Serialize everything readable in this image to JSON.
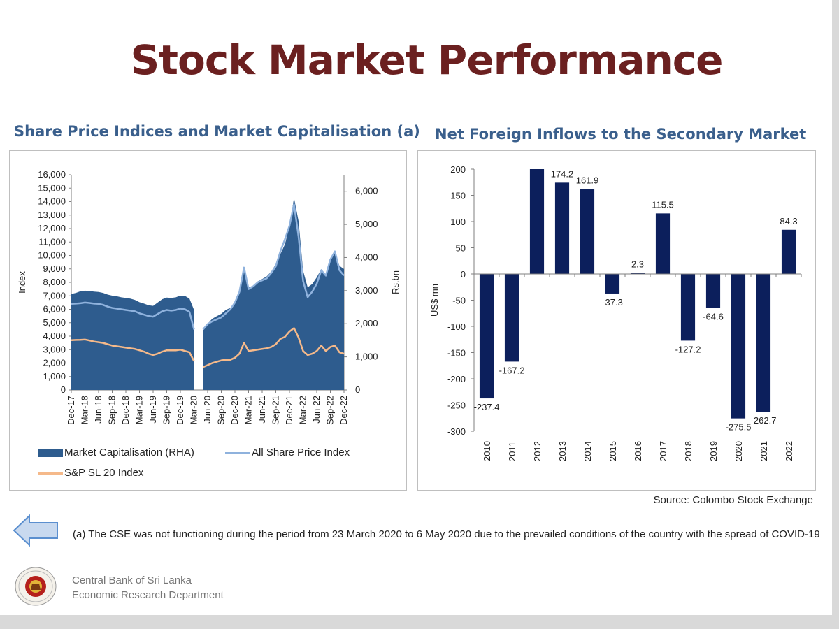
{
  "page_title": "Stock Market Performance",
  "source": "Source: Colombo Stock Exchange",
  "footnote": "(a) The CSE was not functioning during the period from 23 March 2020 to 6 May 2020 due to the prevailed conditions of the country with the spread of COVID-19",
  "organization": {
    "line1": "Central Bank of Sri Lanka",
    "line2": "Economic Research Department"
  },
  "colors": {
    "title": "#6b2020",
    "chart_title": "#3a5f8c",
    "market_cap": "#2e5c8e",
    "aspi": "#8fb2dd",
    "sp": "#f5b98a",
    "bars": "#0c1f5c"
  },
  "chart_data": [
    {
      "type": "area",
      "title": "Share Price Indices and Market Capitalisation (a)",
      "ylabel": "Index",
      "y2label": "Rs.bn",
      "ylim": [
        0,
        16000
      ],
      "y2lim": [
        0,
        6500
      ],
      "yticks": [
        "0",
        "1,000",
        "2,000",
        "3,000",
        "4,000",
        "5,000",
        "6,000",
        "7,000",
        "8,000",
        "9,000",
        "10,000",
        "11,000",
        "12,000",
        "13,000",
        "14,000",
        "15,000",
        "16,000"
      ],
      "y2ticks": [
        "0",
        "1,000",
        "2,000",
        "3,000",
        "4,000",
        "5,000",
        "6,000"
      ],
      "x_ticks": [
        "Dec-17",
        "Mar-18",
        "Jun-18",
        "Sep-18",
        "Dec-18",
        "Mar-19",
        "Jun-19",
        "Sep-19",
        "Dec-19",
        "Mar-20",
        "Jun-20",
        "Sep-20",
        "Dec-20",
        "Mar-21",
        "Jun-21",
        "Sep-21",
        "Dec-21",
        "Mar-22",
        "Jun-22",
        "Sep-22",
        "Dec-22"
      ],
      "x": [
        "Dec-17",
        "Jan-18",
        "Feb-18",
        "Mar-18",
        "Apr-18",
        "May-18",
        "Jun-18",
        "Jul-18",
        "Aug-18",
        "Sep-18",
        "Oct-18",
        "Nov-18",
        "Dec-18",
        "Jan-19",
        "Feb-19",
        "Mar-19",
        "Apr-19",
        "May-19",
        "Jun-19",
        "Jul-19",
        "Aug-19",
        "Sep-19",
        "Oct-19",
        "Nov-19",
        "Dec-19",
        "Jan-20",
        "Feb-20",
        "Mar-20",
        "Apr-20",
        "May-20",
        "Jun-20",
        "Jul-20",
        "Aug-20",
        "Sep-20",
        "Oct-20",
        "Nov-20",
        "Dec-20",
        "Jan-21",
        "Feb-21",
        "Mar-21",
        "Apr-21",
        "May-21",
        "Jun-21",
        "Jul-21",
        "Aug-21",
        "Sep-21",
        "Oct-21",
        "Nov-21",
        "Dec-21",
        "Jan-22",
        "Feb-22",
        "Mar-22",
        "Apr-22",
        "May-22",
        "Jun-22",
        "Jul-22",
        "Aug-22",
        "Sep-22",
        "Oct-22",
        "Nov-22",
        "Dec-22"
      ],
      "gap": [
        "Apr-20"
      ],
      "series": [
        {
          "name": "Market Capitalisation (RHA)",
          "axis": "right",
          "values": [
            2900,
            2930,
            2980,
            3000,
            2990,
            2970,
            2960,
            2930,
            2880,
            2850,
            2830,
            2800,
            2780,
            2760,
            2720,
            2650,
            2610,
            2560,
            2540,
            2640,
            2740,
            2790,
            2780,
            2800,
            2850,
            2840,
            2760,
            2420,
            null,
            1870,
            2000,
            2150,
            2230,
            2300,
            2420,
            2480,
            2650,
            2950,
            3650,
            3100,
            3150,
            3280,
            3350,
            3430,
            3580,
            3800,
            4100,
            4400,
            4950,
            5800,
            5100,
            3600,
            3100,
            3200,
            3400,
            3650,
            3450,
            3950,
            4150,
            3750,
            3650
          ]
        },
        {
          "name": "All Share Price Index",
          "axis": "left",
          "values": [
            6400,
            6420,
            6450,
            6500,
            6470,
            6420,
            6400,
            6330,
            6200,
            6100,
            6050,
            6000,
            5950,
            5900,
            5850,
            5700,
            5600,
            5500,
            5450,
            5650,
            5850,
            5950,
            5900,
            5950,
            6050,
            6000,
            5800,
            4500,
            null,
            4500,
            4900,
            5100,
            5250,
            5400,
            5700,
            6000,
            6500,
            7300,
            9100,
            7500,
            7700,
            8000,
            8150,
            8300,
            8700,
            9200,
            10300,
            11200,
            12200,
            13800,
            11400,
            8100,
            6900,
            7300,
            7900,
            8900,
            8500,
            9700,
            10300,
            8900,
            8500
          ]
        },
        {
          "name": "S&P SL 20 Index",
          "axis": "left",
          "values": [
            3700,
            3720,
            3730,
            3750,
            3680,
            3600,
            3550,
            3500,
            3400,
            3300,
            3250,
            3200,
            3150,
            3100,
            3050,
            2950,
            2850,
            2700,
            2600,
            2700,
            2850,
            2950,
            2950,
            2950,
            3000,
            2900,
            2800,
            2150,
            null,
            1700,
            1850,
            2000,
            2100,
            2200,
            2250,
            2250,
            2400,
            2700,
            3500,
            2900,
            2950,
            3000,
            3050,
            3100,
            3200,
            3400,
            3800,
            3950,
            4350,
            4600,
            3900,
            2900,
            2600,
            2700,
            2900,
            3300,
            2900,
            3200,
            3300,
            2800,
            2700
          ]
        }
      ],
      "legend": [
        "Market Capitalisation (RHA)",
        "All Share Price Index",
        "S&P SL 20 Index"
      ]
    },
    {
      "type": "bar",
      "title": "Net Foreign Inflows to the Secondary Market",
      "ylabel": "US$ mn",
      "ylim": [
        -300,
        200
      ],
      "yticks": [
        "-300",
        "-250",
        "-200",
        "-150",
        "-100",
        "-50",
        "0",
        "50",
        "100",
        "150",
        "200"
      ],
      "categories": [
        "2010",
        "2011",
        "2012",
        "2013",
        "2014",
        "2015",
        "2016",
        "2017",
        "2018",
        "2019",
        "2020",
        "2021",
        "2022"
      ],
      "values": [
        -237.4,
        -167.2,
        200,
        174.2,
        161.9,
        -37.3,
        2.3,
        115.5,
        -127.2,
        -64.6,
        -275.5,
        -262.7,
        84.3
      ],
      "data_labels": [
        "-237.4",
        "-167.2",
        "",
        "174.2",
        "161.9",
        "-37.3",
        "2.3",
        "115.5",
        "-127.2",
        "-64.6",
        "-275.5",
        "-262.7",
        "84.3"
      ]
    }
  ]
}
